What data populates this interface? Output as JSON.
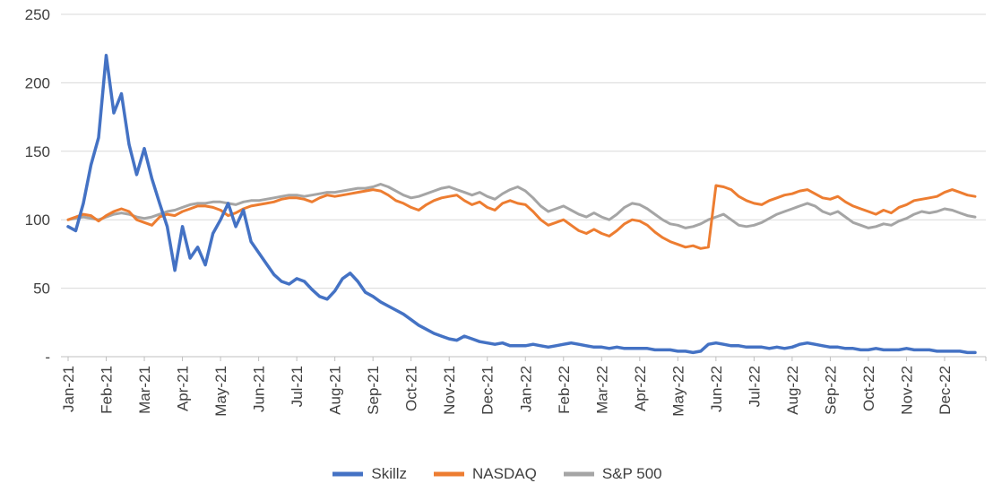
{
  "chart_data": {
    "type": "line",
    "title": "",
    "xlabel": "",
    "ylabel": "",
    "grid": true,
    "legend_position": "bottom",
    "background_color": "#FFFFFF",
    "gridline_color": "#D9D9D9",
    "axis_color": "#BFBFBF",
    "label_color": "#404040",
    "ylim": [
      0,
      250
    ],
    "y_tick_values": [
      0,
      50,
      100,
      150,
      200,
      250
    ],
    "y_tick_labels": [
      "-",
      "50",
      "100",
      "150",
      "200",
      "250"
    ],
    "categories": [
      "Jan-21",
      "Feb-21",
      "Mar-21",
      "Apr-21",
      "May-21",
      "Jun-21",
      "Jul-21",
      "Aug-21",
      "Sep-21",
      "Oct-21",
      "Nov-21",
      "Dec-21",
      "Jan-22",
      "Feb-22",
      "Mar-22",
      "Apr-22",
      "May-22",
      "Jun-22",
      "Jul-22",
      "Aug-22",
      "Sep-22",
      "Oct-22",
      "Nov-22",
      "Dec-22"
    ],
    "series": [
      {
        "name": "Skillz",
        "color": "#4472C4",
        "stroke_width": 3.5,
        "values": [
          95,
          92,
          112,
          140,
          160,
          220,
          178,
          192,
          155,
          133,
          152,
          130,
          112,
          95,
          63,
          95,
          72,
          80,
          67,
          90,
          100,
          112,
          95,
          107,
          84,
          76,
          68,
          60,
          55,
          53,
          57,
          55,
          49,
          44,
          42,
          48,
          57,
          61,
          55,
          47,
          44,
          40,
          37,
          34,
          31,
          27,
          23,
          20,
          17,
          15,
          13,
          12,
          15,
          13,
          11,
          10,
          9,
          10,
          8,
          8,
          8,
          9,
          8,
          7,
          8,
          9,
          10,
          9,
          8,
          7,
          7,
          6,
          7,
          6,
          6,
          6,
          6,
          5,
          5,
          5,
          4,
          4,
          3,
          4,
          9,
          10,
          9,
          8,
          8,
          7,
          7,
          7,
          6,
          7,
          6,
          7,
          9,
          10,
          9,
          8,
          7,
          7,
          6,
          6,
          5,
          5,
          6,
          5,
          5,
          5,
          6,
          5,
          5,
          5,
          4,
          4,
          4,
          4,
          3,
          3
        ]
      },
      {
        "name": "NASDAQ",
        "color": "#ED7D31",
        "stroke_width": 3,
        "values": [
          100,
          102,
          104,
          103,
          99,
          103,
          106,
          108,
          106,
          100,
          98,
          96,
          102,
          104,
          103,
          106,
          108,
          110,
          110,
          109,
          107,
          103,
          105,
          108,
          110,
          111,
          112,
          113,
          115,
          116,
          116,
          115,
          113,
          116,
          118,
          117,
          118,
          119,
          120,
          121,
          122,
          121,
          118,
          114,
          112,
          109,
          107,
          111,
          114,
          116,
          117,
          118,
          114,
          111,
          113,
          109,
          107,
          112,
          114,
          112,
          111,
          106,
          100,
          96,
          98,
          100,
          96,
          92,
          90,
          93,
          90,
          88,
          92,
          97,
          100,
          99,
          96,
          91,
          87,
          84,
          82,
          80,
          81,
          79,
          80,
          125,
          124,
          122,
          117,
          114,
          112,
          111,
          114,
          116,
          118,
          119,
          121,
          122,
          119,
          116,
          115,
          117,
          113,
          110,
          108,
          106,
          104,
          107,
          105,
          109,
          111,
          114,
          115,
          116,
          117,
          120,
          122,
          120,
          118,
          117
        ]
      },
      {
        "name": "S&P 500",
        "color": "#A5A5A5",
        "stroke_width": 3,
        "values": [
          100,
          101,
          102,
          101,
          100,
          102,
          104,
          105,
          104,
          102,
          101,
          102,
          104,
          106,
          107,
          109,
          111,
          112,
          112,
          113,
          113,
          112,
          111,
          113,
          114,
          114,
          115,
          116,
          117,
          118,
          118,
          117,
          118,
          119,
          120,
          120,
          121,
          122,
          123,
          123,
          124,
          126,
          124,
          121,
          118,
          116,
          117,
          119,
          121,
          123,
          124,
          122,
          120,
          118,
          120,
          117,
          115,
          119,
          122,
          124,
          121,
          116,
          110,
          106,
          108,
          110,
          107,
          104,
          102,
          105,
          102,
          100,
          104,
          109,
          112,
          111,
          108,
          104,
          100,
          97,
          96,
          94,
          95,
          97,
          100,
          102,
          104,
          100,
          96,
          95,
          96,
          98,
          101,
          104,
          106,
          108,
          110,
          112,
          110,
          106,
          104,
          106,
          102,
          98,
          96,
          94,
          95,
          97,
          96,
          99,
          101,
          104,
          106,
          105,
          106,
          108,
          107,
          105,
          103,
          102
        ]
      }
    ]
  }
}
